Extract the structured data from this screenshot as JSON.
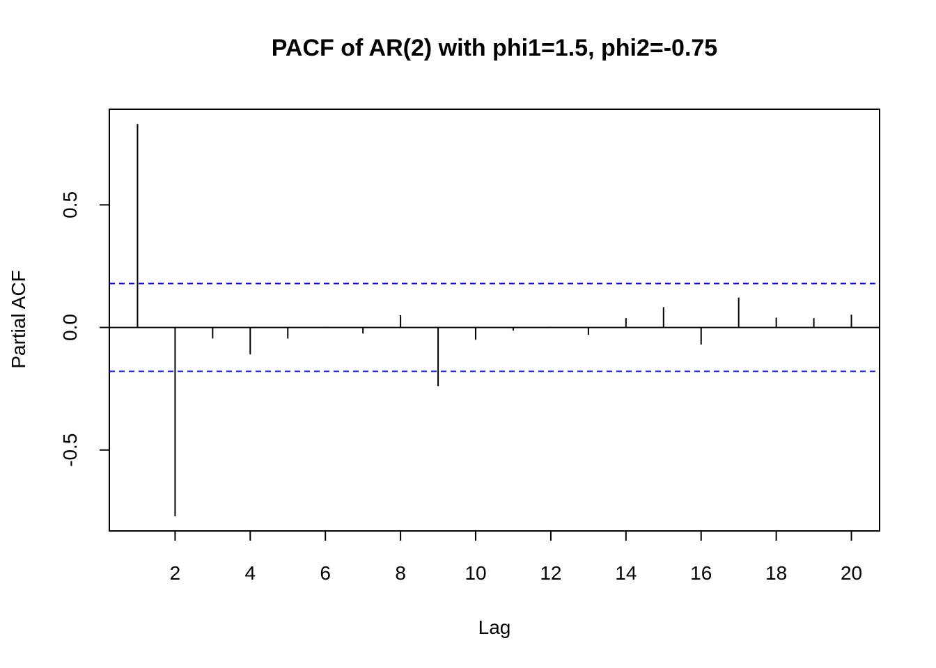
{
  "chart_data": {
    "type": "bar",
    "title": "PACF of AR(2) with phi1=1.5, phi2=-0.75",
    "xlabel": "Lag",
    "ylabel": "Partial ACF",
    "x": [
      1,
      2,
      3,
      4,
      5,
      6,
      7,
      8,
      9,
      10,
      11,
      12,
      13,
      14,
      15,
      16,
      17,
      18,
      19,
      20
    ],
    "values": [
      0.83,
      -0.77,
      -0.045,
      -0.11,
      -0.045,
      0.003,
      -0.025,
      0.05,
      -0.24,
      -0.05,
      -0.013,
      0.003,
      -0.03,
      0.038,
      0.083,
      -0.07,
      0.122,
      0.04,
      0.038,
      0.052
    ],
    "xlim": [
      0.25,
      20.75
    ],
    "ylim": [
      -0.83,
      0.89
    ],
    "x_ticks": [
      2,
      4,
      6,
      8,
      10,
      12,
      14,
      16,
      18,
      20
    ],
    "x_tick_labels": [
      "2",
      "4",
      "6",
      "8",
      "10",
      "12",
      "14",
      "16",
      "18",
      "20"
    ],
    "y_ticks": [
      -0.5,
      0.0,
      0.5
    ],
    "y_tick_labels": [
      "-0.5",
      "0.0",
      "0.5"
    ],
    "confidence_bound": 0.179,
    "confidence_line_color": "#0000ff",
    "line_color": "#000000",
    "grid": false,
    "legend": "none"
  }
}
